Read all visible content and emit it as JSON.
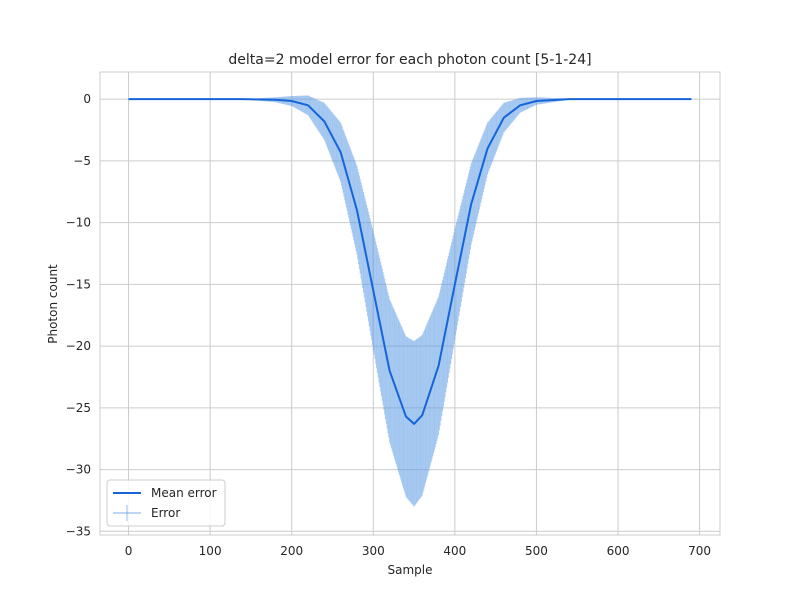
{
  "colors": {
    "mean_line": "#1565d8",
    "error_bars": "#5b9be6",
    "grid": "#cccccc",
    "axes_edge": "#cccccc",
    "background": "#ffffff"
  },
  "chart_data": {
    "type": "line",
    "title": "delta=2 model error for each photon count [5-1-24]",
    "xlabel": "Sample",
    "ylabel": "Photon count",
    "xlim": [
      -35,
      725
    ],
    "ylim": [
      -35.3,
      2.2
    ],
    "xticks": [
      0,
      100,
      200,
      300,
      400,
      500,
      600,
      700
    ],
    "yticks": [
      0,
      -5,
      -10,
      -15,
      -20,
      -25,
      -30,
      -35
    ],
    "grid": true,
    "legend": {
      "placement": "lower-left",
      "entries": [
        "Mean error",
        "Error"
      ]
    },
    "series": [
      {
        "name": "Mean error",
        "kind": "line",
        "x": [
          0,
          140,
          180,
          200,
          220,
          240,
          260,
          280,
          300,
          320,
          340,
          350,
          360,
          380,
          400,
          420,
          440,
          460,
          480,
          500,
          540,
          600,
          690
        ],
        "y": [
          0,
          0,
          -0.05,
          -0.15,
          -0.5,
          -1.8,
          -4.3,
          -9.0,
          -15.5,
          -22.0,
          -25.7,
          -26.3,
          -25.6,
          -21.6,
          -15.0,
          -8.5,
          -4.0,
          -1.5,
          -0.5,
          -0.15,
          0,
          0,
          0
        ]
      },
      {
        "name": "Error",
        "kind": "errorbar",
        "x": [
          0,
          140,
          180,
          200,
          220,
          240,
          260,
          280,
          300,
          320,
          340,
          350,
          360,
          380,
          400,
          420,
          440,
          460,
          480,
          500,
          540,
          600,
          690
        ],
        "y": [
          0,
          0,
          -0.05,
          -0.15,
          -0.5,
          -1.8,
          -4.3,
          -9.0,
          -15.5,
          -22.0,
          -25.7,
          -26.3,
          -25.6,
          -21.6,
          -15.0,
          -8.5,
          -4.0,
          -1.5,
          -0.5,
          -0.15,
          0,
          0,
          0
        ],
        "err": [
          0,
          0,
          0.2,
          0.4,
          0.8,
          1.5,
          2.4,
          3.6,
          4.8,
          5.8,
          6.5,
          6.7,
          6.5,
          5.6,
          4.5,
          3.3,
          2.1,
          1.2,
          0.6,
          0.3,
          0.05,
          0,
          0
        ]
      }
    ]
  }
}
